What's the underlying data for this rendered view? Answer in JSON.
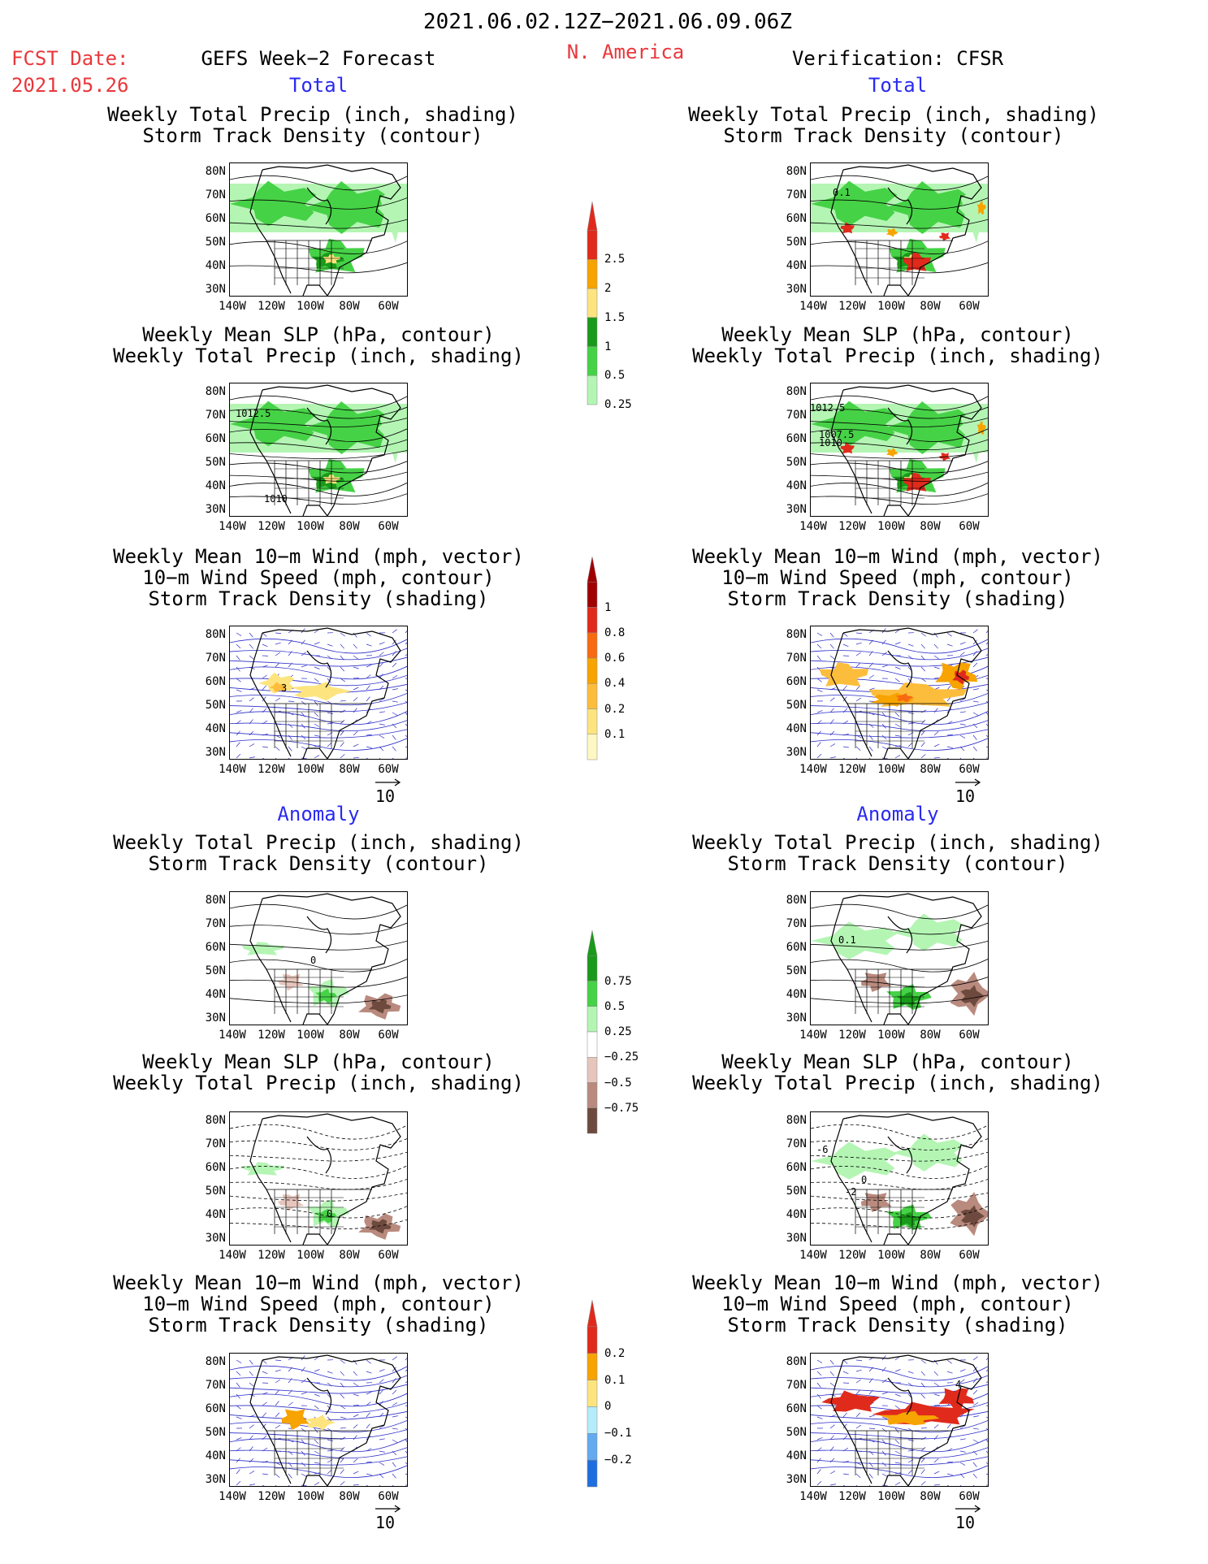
{
  "header": {
    "period": "2021.06.02.12Z−2021.06.09.06Z",
    "fcst_label": "FCST Date:",
    "fcst_date": "2021.05.26",
    "forecast_title": "GEFS Week−2 Forecast",
    "region": "N. America",
    "verification": "Verification: CFSR"
  },
  "sections": {
    "total": "Total",
    "anomaly": "Anomaly"
  },
  "titles": {
    "precip_storm": "Weekly Total Precip (inch, shading)\nStorm Track Density (contour)",
    "slp_precip": "Weekly Mean SLP (hPa, contour)\nWeekly Total Precip (inch, shading)",
    "wind_storm": "Weekly Mean 10−m Wind (mph, vector)\n10−m Wind Speed (mph, contour)\nStorm Track Density (shading)"
  },
  "axes": {
    "lat_labels": [
      "80N",
      "70N",
      "60N",
      "50N",
      "40N",
      "30N"
    ],
    "lon_labels": [
      "140W",
      "120W",
      "100W",
      "80W",
      "60W"
    ]
  },
  "map_annotations": {
    "fcst_slp_1": "1012.5",
    "fcst_slp_2": "1010",
    "ver_slp_1": "1012.5",
    "ver_slp_2": "1007.5",
    "ver_slp_3": "1010",
    "ver_storm": "0.1",
    "fcst_wind": "3",
    "ver_anom_storm": "0.1",
    "ver_anom_slp_1": "-6",
    "ver_anom_slp_2": "-2",
    "ver_anom_slp_3": "0",
    "fcst_anom_storm": "0",
    "fcst_anom_slp": "0",
    "ver_anom_wind": "4"
  },
  "vector_ref": "10",
  "colorbars": {
    "precip_total": {
      "labels": [
        "2.5",
        "2",
        "1.5",
        "1",
        "0.5",
        "0.25"
      ],
      "colors": [
        "#e02a1c",
        "#f7a300",
        "#fde47f",
        "#1a9a1a",
        "#46d246",
        "#b4f5b4"
      ]
    },
    "storm_total": {
      "labels": [
        "1",
        "0.8",
        "0.6",
        "0.4",
        "0.2",
        "0.1"
      ],
      "colors": [
        "#a00000",
        "#e02a1c",
        "#f86a10",
        "#f7a300",
        "#fdbd3c",
        "#fde47f",
        "#fff7c4"
      ]
    },
    "precip_anom": {
      "labels": [
        "0.75",
        "0.5",
        "0.25",
        "−0.25",
        "−0.5",
        "−0.75"
      ],
      "colors": [
        "#1a9a1a",
        "#46d246",
        "#b4f5b4",
        "#ffffff",
        "#e6c6bc",
        "#b98a7e",
        "#6e4a3e"
      ]
    },
    "storm_anom": {
      "labels": [
        "0.2",
        "0.1",
        "0",
        "−0.1",
        "−0.2"
      ],
      "colors": [
        "#e02a1c",
        "#f7a300",
        "#fde47f",
        "#b4ecfa",
        "#64aaf0",
        "#1f6ee0"
      ]
    }
  }
}
